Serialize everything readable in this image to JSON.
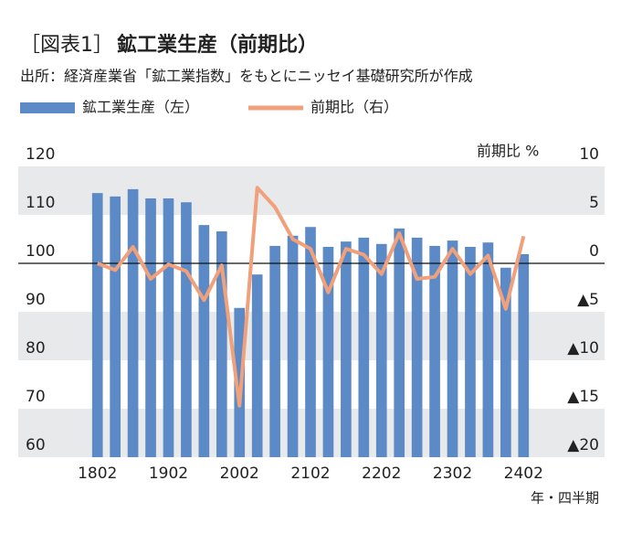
{
  "chart_data": {
    "type": "bar",
    "figure_label": "［図表1］",
    "title": "鉱工業生産（前期比）",
    "subtitle": "出所：経済産業省「鉱工業指数」をもとにニッセイ基礎研究所が作成",
    "y2_label": "前期比 %",
    "x_label": "年・四半期",
    "categories": [
      "1802",
      null,
      null,
      null,
      "1902",
      null,
      null,
      null,
      "2002",
      null,
      null,
      null,
      "2102",
      null,
      null,
      null,
      "2202",
      null,
      null,
      null,
      "2302",
      null,
      null,
      null,
      "2402"
    ],
    "series": [
      {
        "name": "鉱工業生産（左）",
        "type": "bar",
        "axis": "y",
        "color": "#5b8ac6",
        "values": [
          114.5,
          113.8,
          115.3,
          113.4,
          113.4,
          112.6,
          107.9,
          106.6,
          90.8,
          97.7,
          103.6,
          105.7,
          107.5,
          103.4,
          104.5,
          105.3,
          104.0,
          107.2,
          105.3,
          103.6,
          104.7,
          103.4,
          104.3,
          99.1,
          101.9
        ]
      },
      {
        "name": "前期比（右）",
        "type": "line",
        "axis": "y2",
        "color": "#f0a07a",
        "values": [
          0.0,
          -0.7,
          1.7,
          -1.6,
          -0.1,
          -0.8,
          -3.8,
          -0.2,
          -14.7,
          7.8,
          5.8,
          2.5,
          1.5,
          -3.0,
          1.5,
          0.9,
          -1.1,
          3.1,
          -1.6,
          -1.4,
          1.5,
          -1.1,
          0.8,
          -4.7,
          2.8
        ]
      }
    ],
    "ylim": [
      60,
      120
    ],
    "yticks": [
      60,
      70,
      80,
      90,
      100,
      110,
      120
    ],
    "y2lim": [
      -20,
      10
    ],
    "y2ticks": [
      {
        "value": -20,
        "label": "▲20"
      },
      {
        "value": -15,
        "label": "▲15"
      },
      {
        "value": -10,
        "label": "▲10"
      },
      {
        "value": -5,
        "label": "▲5"
      },
      0,
      5,
      10
    ],
    "baseline": 100,
    "legend": "top-left"
  }
}
